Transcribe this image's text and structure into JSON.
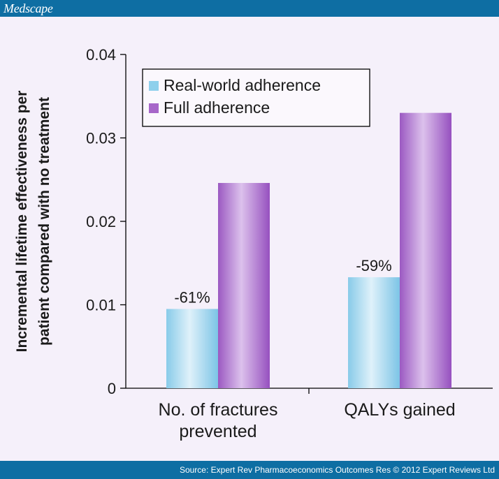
{
  "header": {
    "brand": "Medscape"
  },
  "footer": {
    "source": "Source: Expert Rev Pharmacoeconomics Outcomes Res © 2012 Expert Reviews Ltd"
  },
  "colors": {
    "header_bar": "#0e6ea3",
    "background": "#f5f0fa",
    "real_world": "#8fd0ec",
    "full": "#a767c9"
  },
  "chart_data": {
    "type": "bar",
    "categories": [
      "No. of fractures prevented",
      "QALYs gained"
    ],
    "category_lines": [
      [
        "No. of fractures",
        "prevented"
      ],
      [
        "QALYs gained"
      ]
    ],
    "series": [
      {
        "name": "Real-world adherence",
        "values": [
          0.0095,
          0.0133
        ],
        "color": "#8fd0ec"
      },
      {
        "name": "Full adherence",
        "values": [
          0.0246,
          0.033
        ],
        "color": "#a767c9"
      }
    ],
    "annotations": [
      "-61%",
      "-59%"
    ],
    "ylabel_lines": [
      "Incremental lifetime effectiveness per",
      "patient compared with no treatment"
    ],
    "yticks": [
      "0",
      "0.01",
      "0.02",
      "0.03",
      "0.04"
    ],
    "ylim": [
      0,
      0.04
    ],
    "grid": false,
    "legend_position": "top-left"
  }
}
